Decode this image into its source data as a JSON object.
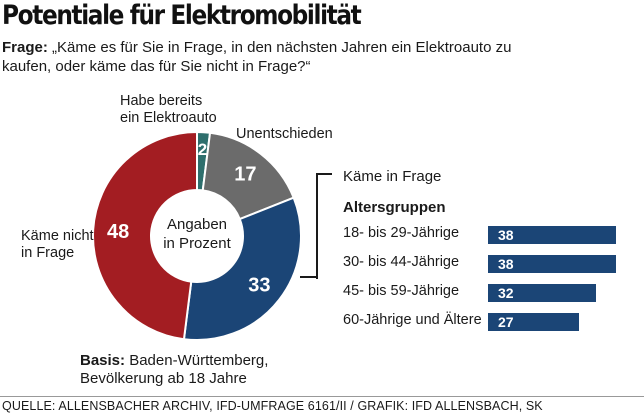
{
  "title": "Potentiale für Elektromobilität",
  "question": {
    "label": "Frage:",
    "text": "„Käme es für Sie in Frage, in den nächsten Jahren ein Elektroauto zu kaufen, oder käme das für Sie nicht in Frage?“"
  },
  "center_label": [
    "Angaben",
    "in Prozent"
  ],
  "colors": {
    "red": "#a31d22",
    "blue": "#1b4576",
    "gray": "#6b6b6b",
    "teal": "#2e6f6d"
  },
  "chart_data": [
    {
      "type": "pie",
      "subtype": "donut",
      "slices": [
        {
          "label": "Habe bereits ein Elektroauto",
          "value": 2,
          "color": "#2e6f6d"
        },
        {
          "label": "Unentschieden",
          "value": 17,
          "color": "#6b6b6b"
        },
        {
          "label": "Käme in Frage",
          "value": 33,
          "color": "#1b4576"
        },
        {
          "label": "Käme nicht in Frage",
          "value": 48,
          "color": "#a31d22"
        }
      ]
    },
    {
      "type": "bar",
      "orientation": "horizontal",
      "title": "Altersgruppen",
      "qualifier": "Käme in Frage",
      "categories": [
        "18- bis 29-Jährige",
        "30- bis 44-Jährige",
        "45- bis 59-Jährige",
        "60-Jährige und Ältere"
      ],
      "values": [
        38,
        38,
        32,
        27
      ],
      "color": "#1b4576"
    }
  ],
  "basis": {
    "label": "Basis:",
    "line1": "Baden-Württemberg,",
    "line2": "Bevölkerung ab 18 Jahre"
  },
  "source": "QUELLE: ALLENSBACHER ARCHIV, IFD-UMFRAGE 6161/II / GRAFIK: IFD ALLENSBACH, SK"
}
